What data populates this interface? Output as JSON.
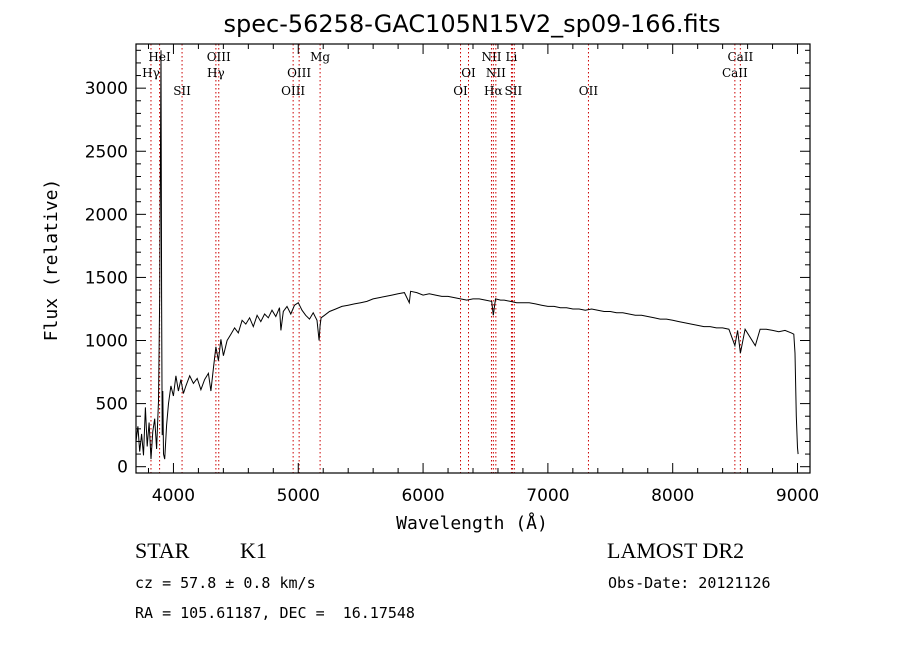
{
  "chart_data": {
    "type": "line",
    "title": "spec-56258-GAC105N15V2_sp09-166.fits",
    "xlabel": "Wavelength (Å)",
    "ylabel": "Flux (relative)",
    "xlim": [
      3700,
      9100
    ],
    "ylim": [
      -50,
      3350
    ],
    "xticks": [
      4000,
      5000,
      6000,
      7000,
      8000,
      9000
    ],
    "yticks": [
      0,
      500,
      1000,
      1500,
      2000,
      2500,
      3000
    ],
    "grid": false,
    "line_color": "#000000",
    "marker_color": "#cc0000",
    "spectral_lines": [
      {
        "name": "Hγ",
        "wavelengths": [
          3820
        ],
        "row": 2
      },
      {
        "name": "HeI",
        "wavelengths": [
          3889
        ],
        "row": 1
      },
      {
        "name": "SII",
        "wavelengths": [
          4069
        ],
        "row": 3
      },
      {
        "name": "OIII",
        "wavelengths": [
          4363
        ],
        "row": 1
      },
      {
        "name": "Hγ",
        "wavelengths": [
          4340
        ],
        "row": 2
      },
      {
        "name": "OIII",
        "wavelengths": [
          4959
        ],
        "row": 3
      },
      {
        "name": "OIII",
        "wavelengths": [
          5007
        ],
        "row": 2
      },
      {
        "name": "Mg",
        "wavelengths": [
          5175
        ],
        "row": 1
      },
      {
        "name": "OI",
        "wavelengths": [
          6300
        ],
        "row": 3
      },
      {
        "name": "OI",
        "wavelengths": [
          6364
        ],
        "row": 2
      },
      {
        "name": "NII",
        "wavelengths": [
          6548
        ],
        "row": 1
      },
      {
        "name": "NII",
        "wavelengths": [
          6583
        ],
        "row": 2
      },
      {
        "name": "Hα",
        "wavelengths": [
          6563
        ],
        "row": 3
      },
      {
        "name": "Li",
        "wavelengths": [
          6708
        ],
        "row": 1
      },
      {
        "name": "SII",
        "wavelengths": [
          6716,
          6731
        ],
        "row": 3
      },
      {
        "name": "OII",
        "wavelengths": [
          7325
        ],
        "row": 3
      },
      {
        "name": "CaII",
        "wavelengths": [
          8542
        ],
        "row": 1
      },
      {
        "name": "CaII",
        "wavelengths": [
          8498
        ],
        "row": 2
      }
    ],
    "series": [
      {
        "x": [
          3700,
          3715,
          3730,
          3745,
          3760,
          3775,
          3790,
          3805,
          3820,
          3835,
          3850,
          3865,
          3880,
          3890,
          3900,
          3905,
          3910,
          3915,
          3920,
          3930,
          3945,
          3960,
          3980,
          4000,
          4020,
          4040,
          4060,
          4080,
          4100,
          4130,
          4160,
          4190,
          4220,
          4250,
          4280,
          4300,
          4320,
          4340,
          4360,
          4380,
          4400,
          4430,
          4460,
          4490,
          4520,
          4550,
          4580,
          4610,
          4640,
          4670,
          4700,
          4730,
          4760,
          4790,
          4820,
          4850,
          4861,
          4880,
          4910,
          4940,
          4970,
          5000,
          5030,
          5060,
          5090,
          5120,
          5150,
          5167,
          5175,
          5183,
          5210,
          5250,
          5300,
          5350,
          5400,
          5450,
          5500,
          5550,
          5600,
          5650,
          5700,
          5750,
          5800,
          5850,
          5890,
          5900,
          5950,
          6000,
          6050,
          6100,
          6150,
          6200,
          6250,
          6300,
          6350,
          6400,
          6450,
          6500,
          6550,
          6563,
          6580,
          6620,
          6650,
          6700,
          6750,
          6800,
          6850,
          6900,
          6950,
          7000,
          7050,
          7100,
          7150,
          7200,
          7250,
          7300,
          7350,
          7400,
          7450,
          7500,
          7550,
          7600,
          7650,
          7700,
          7750,
          7800,
          7850,
          7900,
          7950,
          8000,
          8050,
          8100,
          8150,
          8200,
          8250,
          8300,
          8350,
          8400,
          8450,
          8498,
          8520,
          8542,
          8580,
          8662,
          8700,
          8750,
          8800,
          8850,
          8900,
          8950,
          8970,
          8980,
          8990,
          9000,
          9005
        ],
        "y": [
          200,
          320,
          120,
          260,
          90,
          470,
          160,
          350,
          60,
          280,
          380,
          140,
          520,
          1360,
          3300,
          1350,
          250,
          600,
          100,
          60,
          330,
          500,
          640,
          560,
          720,
          600,
          690,
          580,
          640,
          720,
          660,
          700,
          610,
          690,
          740,
          600,
          780,
          950,
          840,
          1010,
          880,
          1000,
          1050,
          1100,
          1060,
          1160,
          1130,
          1180,
          1110,
          1200,
          1150,
          1210,
          1180,
          1240,
          1190,
          1260,
          1080,
          1230,
          1270,
          1210,
          1280,
          1300,
          1240,
          1200,
          1170,
          1220,
          1160,
          1000,
          1120,
          1180,
          1200,
          1230,
          1250,
          1270,
          1280,
          1290,
          1300,
          1310,
          1330,
          1340,
          1350,
          1360,
          1370,
          1380,
          1300,
          1390,
          1380,
          1360,
          1370,
          1360,
          1350,
          1350,
          1340,
          1330,
          1320,
          1330,
          1330,
          1320,
          1310,
          1200,
          1330,
          1320,
          1320,
          1310,
          1300,
          1300,
          1300,
          1290,
          1280,
          1270,
          1270,
          1260,
          1260,
          1250,
          1250,
          1240,
          1250,
          1240,
          1230,
          1230,
          1220,
          1220,
          1210,
          1200,
          1200,
          1190,
          1180,
          1170,
          1170,
          1160,
          1150,
          1140,
          1130,
          1120,
          1110,
          1110,
          1100,
          1100,
          1090,
          960,
          1080,
          900,
          1090,
          960,
          1090,
          1090,
          1080,
          1070,
          1080,
          1060,
          1050,
          900,
          400,
          150,
          100
        ]
      }
    ]
  },
  "info": {
    "object_class": "STAR",
    "subclass": "K1",
    "survey": "LAMOST DR2",
    "cz": "cz = 57.8 ± 0.8 km/s",
    "obs_date": "Obs-Date: 20121126",
    "radec": "RA = 105.61187, DEC =  16.17548"
  }
}
